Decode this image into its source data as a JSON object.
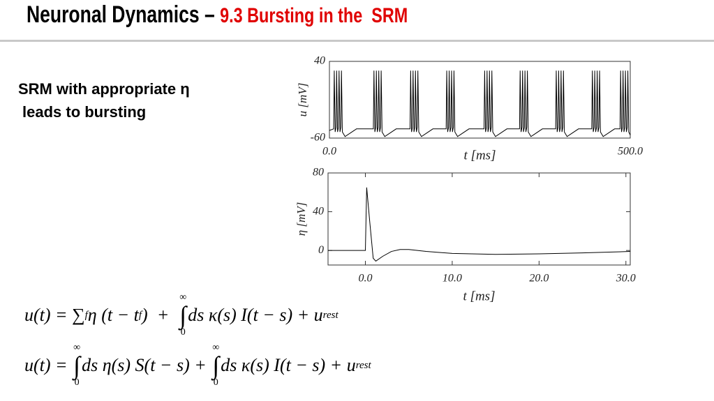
{
  "header": {
    "title": "Neuronal Dynamics – ",
    "subtitle": "9.3 Bursting in the  SRM"
  },
  "text": {
    "line1": "SRM with appropriate η",
    "line2": "leads to bursting"
  },
  "equations": [
    [
      "u(t) = ∑",
      "f",
      "η (t − t",
      "f",
      ")  +  ",
      "∫",
      "∞",
      "0",
      "ds κ(s) I(t − s) + u",
      "rest"
    ],
    [
      "u(t) = ",
      "∫",
      "∞",
      "0",
      "ds η(s) S(t − s) + ",
      "∫",
      "∞",
      "0",
      "ds κ(s) I(t − s) + u",
      "rest"
    ]
  ],
  "chart_data": [
    {
      "type": "line",
      "xlabel": "t [ms]",
      "ylabel": "u [mV]",
      "color": "#000000",
      "xlim": [
        0,
        500
      ],
      "ylim": [
        -60,
        40
      ],
      "xticks": [
        {
          "value": 0,
          "label": "0.0"
        },
        {
          "value": 500,
          "label": "500.0"
        }
      ],
      "yticks": [
        -60,
        40
      ],
      "x": [
        0,
        7,
        8,
        9.5,
        11,
        12,
        13.5,
        15,
        16,
        17.5,
        19,
        20,
        21.5,
        26,
        45,
        73,
        74,
        75.5,
        77,
        78,
        79.5,
        81,
        82,
        83.5,
        85,
        86,
        87.5,
        92,
        111,
        134,
        135,
        136.5,
        138,
        139,
        140.5,
        142,
        143,
        144.5,
        146,
        147,
        148.5,
        153,
        172,
        194,
        195,
        196.5,
        198,
        199,
        200.5,
        202,
        203,
        204.5,
        206,
        207,
        208.5,
        213,
        232,
        257,
        258,
        259.5,
        261,
        262,
        263.5,
        265,
        266,
        267.5,
        269,
        270,
        271.5,
        276,
        295,
        316,
        317,
        318.5,
        320,
        321,
        322.5,
        324,
        325,
        326.5,
        328,
        329,
        330.5,
        335,
        354,
        376,
        377,
        378.5,
        380,
        381,
        382.5,
        384,
        385,
        386.5,
        388,
        389,
        390.5,
        395,
        414,
        436,
        437,
        438.5,
        440,
        441,
        442.5,
        444,
        445,
        446.5,
        448,
        449,
        450.5,
        455,
        474,
        483,
        484,
        485.5,
        487,
        488,
        489.5,
        491,
        492,
        493.5,
        495,
        496,
        497.5,
        500
      ],
      "values": [
        -50,
        -48,
        28,
        -52,
        -46,
        28,
        -52,
        -46,
        28,
        -52,
        -46,
        28,
        -52,
        -58,
        -48,
        -48,
        28,
        -52,
        -46,
        28,
        -52,
        -46,
        28,
        -52,
        -46,
        28,
        -52,
        -58,
        -48,
        -48,
        28,
        -52,
        -46,
        28,
        -52,
        -46,
        28,
        -52,
        -46,
        28,
        -52,
        -58,
        -48,
        -48,
        28,
        -52,
        -46,
        28,
        -52,
        -46,
        28,
        -52,
        -46,
        28,
        -52,
        -58,
        -48,
        -48,
        28,
        -52,
        -46,
        28,
        -52,
        -46,
        28,
        -52,
        -46,
        28,
        -52,
        -58,
        -48,
        -48,
        28,
        -52,
        -46,
        28,
        -52,
        -46,
        28,
        -52,
        -46,
        28,
        -52,
        -58,
        -48,
        -48,
        28,
        -52,
        -46,
        28,
        -52,
        -46,
        28,
        -52,
        -46,
        28,
        -52,
        -58,
        -48,
        -48,
        28,
        -52,
        -46,
        28,
        -52,
        -46,
        28,
        -52,
        -46,
        28,
        -52,
        -58,
        -48,
        -48,
        28,
        -52,
        -46,
        28,
        -52,
        -46,
        28,
        -52,
        -46,
        28,
        -52,
        -56
      ]
    },
    {
      "type": "line",
      "xlabel": "t [ms]",
      "ylabel": "η [mV]",
      "color": "#000000",
      "xlim": [
        -4.3,
        30.5
      ],
      "ylim": [
        -15,
        80
      ],
      "xticks": [
        {
          "value": 0,
          "label": "0.0"
        },
        {
          "value": 10,
          "label": "10.0"
        },
        {
          "value": 20,
          "label": "20.0"
        },
        {
          "value": 30,
          "label": "30.0"
        }
      ],
      "yticks": [
        0,
        40,
        80
      ],
      "x": [
        -4.3,
        0,
        0.15,
        0.5,
        0.9,
        1.2,
        2,
        3,
        4,
        5,
        7,
        10,
        15,
        20,
        25,
        30.5
      ],
      "values": [
        0,
        0,
        65,
        30,
        -8,
        -11,
        -6,
        -1,
        1,
        1,
        -1,
        -3,
        -4,
        -3.5,
        -2.5,
        -1
      ]
    }
  ]
}
